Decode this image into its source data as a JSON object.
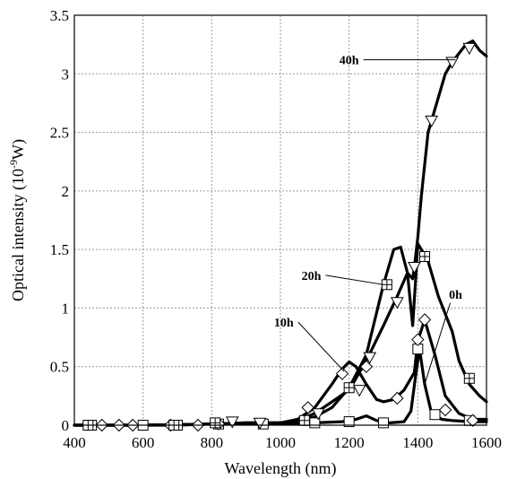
{
  "chart_data": {
    "type": "line",
    "title": "",
    "xlabel": "Wavelength (nm)",
    "ylabel": {
      "base": "Optical intensity (10",
      "sup": "-9",
      "rest": "W)"
    },
    "xlim": [
      400,
      1600
    ],
    "ylim": [
      0,
      3.5
    ],
    "xticks": [
      400,
      600,
      800,
      1000,
      1200,
      1400,
      1600
    ],
    "yticks": [
      0,
      0.5,
      1,
      1.5,
      2,
      2.5,
      3,
      3.5
    ],
    "ytick_labels": [
      "0",
      "0.5",
      "1",
      "1.5",
      "2",
      "2.5",
      "3",
      "3.5"
    ],
    "grid": true,
    "series": [
      {
        "name": "0h",
        "marker": "square",
        "x": [
          400,
          500,
          600,
          700,
          800,
          900,
          1000,
          1100,
          1180,
          1220,
          1250,
          1280,
          1320,
          1360,
          1380,
          1395,
          1405,
          1420,
          1440,
          1470,
          1500,
          1550,
          1600
        ],
        "y": [
          0,
          0,
          0,
          0,
          0.01,
          0.01,
          0.01,
          0.02,
          0.03,
          0.05,
          0.08,
          0.04,
          0.02,
          0.03,
          0.12,
          0.45,
          0.65,
          0.35,
          0.1,
          0.05,
          0.04,
          0.03,
          0.03
        ],
        "markers_x": [
          450,
          600,
          700,
          820,
          950,
          1100,
          1200,
          1300,
          1400,
          1450,
          1550
        ],
        "markers_y": [
          0,
          0,
          0,
          0.01,
          0.01,
          0.02,
          0.03,
          0.02,
          0.65,
          0.09,
          0.04
        ]
      },
      {
        "name": "10h",
        "marker": "diamond",
        "x": [
          400,
          600,
          800,
          900,
          1000,
          1050,
          1100,
          1150,
          1180,
          1200,
          1220,
          1250,
          1280,
          1300,
          1330,
          1360,
          1390,
          1400,
          1420,
          1450,
          1480,
          1520,
          1560,
          1600
        ],
        "y": [
          0,
          0,
          0.01,
          0.01,
          0.02,
          0.05,
          0.15,
          0.35,
          0.48,
          0.54,
          0.5,
          0.35,
          0.22,
          0.2,
          0.22,
          0.3,
          0.45,
          0.72,
          0.9,
          0.6,
          0.25,
          0.1,
          0.05,
          0.05
        ],
        "markers_x": [
          480,
          530,
          570,
          680,
          760,
          820,
          1080,
          1180,
          1250,
          1340,
          1400,
          1420,
          1480,
          1560
        ],
        "markers_y": [
          0,
          0,
          0,
          0,
          0,
          0.01,
          0.15,
          0.44,
          0.5,
          0.23,
          0.73,
          0.9,
          0.13,
          0.04
        ]
      },
      {
        "name": "20h",
        "marker": "grid-square",
        "x": [
          400,
          600,
          800,
          900,
          1000,
          1050,
          1100,
          1150,
          1200,
          1250,
          1300,
          1330,
          1350,
          1370,
          1385,
          1395,
          1400,
          1410,
          1430,
          1460,
          1500,
          1520,
          1550,
          1580,
          1600
        ],
        "y": [
          0,
          0,
          0.01,
          0.02,
          0.02,
          0.04,
          0.07,
          0.15,
          0.32,
          0.6,
          1.2,
          1.5,
          1.52,
          1.3,
          0.85,
          1.3,
          1.55,
          1.5,
          1.4,
          1.1,
          0.8,
          0.55,
          0.35,
          0.25,
          0.2
        ],
        "markers_x": [
          440,
          690,
          810,
          1070,
          1200,
          1310,
          1420,
          1550
        ],
        "markers_y": [
          0,
          0,
          0.02,
          0.04,
          0.32,
          1.2,
          1.44,
          0.4
        ]
      },
      {
        "name": "40h",
        "marker": "triangle-down",
        "x": [
          400,
          600,
          800,
          900,
          1000,
          1050,
          1100,
          1150,
          1200,
          1250,
          1300,
          1340,
          1370,
          1385,
          1390,
          1400,
          1410,
          1430,
          1450,
          1480,
          1500,
          1540,
          1560,
          1580,
          1600
        ],
        "y": [
          0,
          0,
          0.01,
          0.02,
          0.02,
          0.04,
          0.1,
          0.2,
          0.3,
          0.55,
          0.85,
          1.1,
          1.3,
          1.25,
          1.35,
          1.6,
          1.95,
          2.5,
          2.7,
          3.0,
          3.1,
          3.25,
          3.28,
          3.2,
          3.15
        ],
        "markers_x": [
          860,
          940,
          1110,
          1230,
          1260,
          1340,
          1390,
          1440,
          1500,
          1550
        ],
        "markers_y": [
          0.03,
          0.02,
          0.1,
          0.3,
          0.58,
          1.05,
          1.35,
          2.6,
          3.1,
          3.22
        ]
      }
    ],
    "annotations": [
      {
        "text": "40h",
        "series": "40h",
        "label_at": [
          1200,
          3.12
        ],
        "point": [
          1510,
          3.12
        ]
      },
      {
        "text": "20h",
        "series": "20h",
        "label_at": [
          1090,
          1.28
        ],
        "point": [
          1300,
          1.2
        ]
      },
      {
        "text": "10h",
        "series": "10h",
        "label_at": [
          1010,
          0.88
        ],
        "point": [
          1185,
          0.46
        ]
      },
      {
        "text": "0h",
        "series": "0h",
        "label_at": [
          1510,
          1.12
        ],
        "point": [
          1420,
          0.35
        ]
      }
    ]
  }
}
